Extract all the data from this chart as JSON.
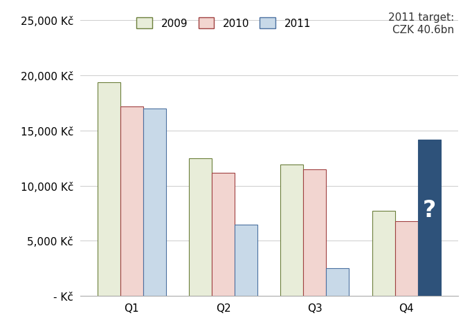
{
  "categories": [
    "Q1",
    "Q2",
    "Q3",
    "Q4"
  ],
  "series": {
    "2009": [
      19400,
      12500,
      11900,
      7700
    ],
    "2010": [
      17200,
      11200,
      11500,
      6800
    ],
    "2011": [
      17000,
      6500,
      2500,
      14200
    ]
  },
  "colors": {
    "2009": {
      "face": "#e8edd9",
      "edge": "#6b7f3a"
    },
    "2010": {
      "face": "#f2d5d0",
      "edge": "#a04040"
    },
    "2011_q1_q3": {
      "face": "#c8d9e8",
      "edge": "#4a70a0"
    },
    "2011_q4": {
      "face": "#2e527a",
      "edge": "#2e527a"
    }
  },
  "ylim": [
    0,
    26000
  ],
  "yticks": [
    0,
    5000,
    10000,
    15000,
    20000,
    25000
  ],
  "ytick_labels": [
    "- Kč",
    "5,000 Kč",
    "10,000 Kč",
    "15,000 Kč",
    "20,000 Kč",
    "25,000 Kč"
  ],
  "annotation_text": "2011 target:\nCZK 40.6bn",
  "bar_width": 0.25,
  "legend_labels": [
    "2009",
    "2010",
    "2011"
  ],
  "question_mark": "?",
  "background_color": "#ffffff",
  "grid_color": "#cccccc",
  "label_fontsize": 11,
  "tick_fontsize": 11,
  "legend_fontsize": 11,
  "annotation_fontsize": 11
}
